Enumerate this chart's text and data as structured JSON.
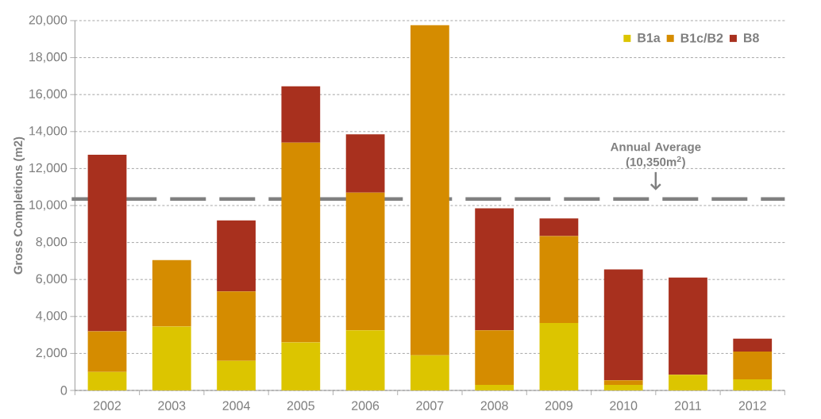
{
  "chart_data": {
    "type": "bar",
    "stacked": true,
    "ylabel": "Gross Completions (m2)",
    "categories": [
      "2002",
      "2003",
      "2004",
      "2005",
      "2006",
      "2007",
      "2008",
      "2009",
      "2010",
      "2011",
      "2012"
    ],
    "series": [
      {
        "name": "B1a",
        "color": "#dcc500",
        "values": [
          1000,
          3450,
          1600,
          2600,
          3250,
          1900,
          300,
          3650,
          300,
          850,
          600
        ]
      },
      {
        "name": "B1c/B2",
        "color": "#d58c00",
        "values": [
          2200,
          3600,
          3750,
          10800,
          7450,
          17850,
          2950,
          4700,
          250,
          0,
          1500
        ]
      },
      {
        "name": "B8",
        "color": "#a8301e",
        "values": [
          9550,
          0,
          3850,
          3050,
          3150,
          0,
          6600,
          950,
          6000,
          5250,
          700
        ]
      }
    ],
    "ylim": [
      0,
      20000
    ],
    "yticks": [
      0,
      {
        "value": 2000,
        "label": "2,000"
      },
      {
        "value": 4000,
        "label": "4,000"
      },
      {
        "value": 6000,
        "label": "6,000"
      },
      {
        "value": 8000,
        "label": "8,000"
      },
      {
        "value": 10000,
        "label": "10,000"
      },
      {
        "value": 12000,
        "label": "12,000"
      },
      {
        "value": 14000,
        "label": "14,000"
      },
      {
        "value": 16000,
        "label": "16,000"
      },
      {
        "value": 18000,
        "label": "18,000"
      },
      {
        "value": 20000,
        "label": "20,000"
      }
    ],
    "grid": "y",
    "legend": "top right",
    "ref_lines": [
      {
        "axis": "y",
        "value": 10350,
        "label": "Annual Average (10,350m$^{2}$)",
        "color": "#808080",
        "line_style": "dashed"
      }
    ]
  }
}
